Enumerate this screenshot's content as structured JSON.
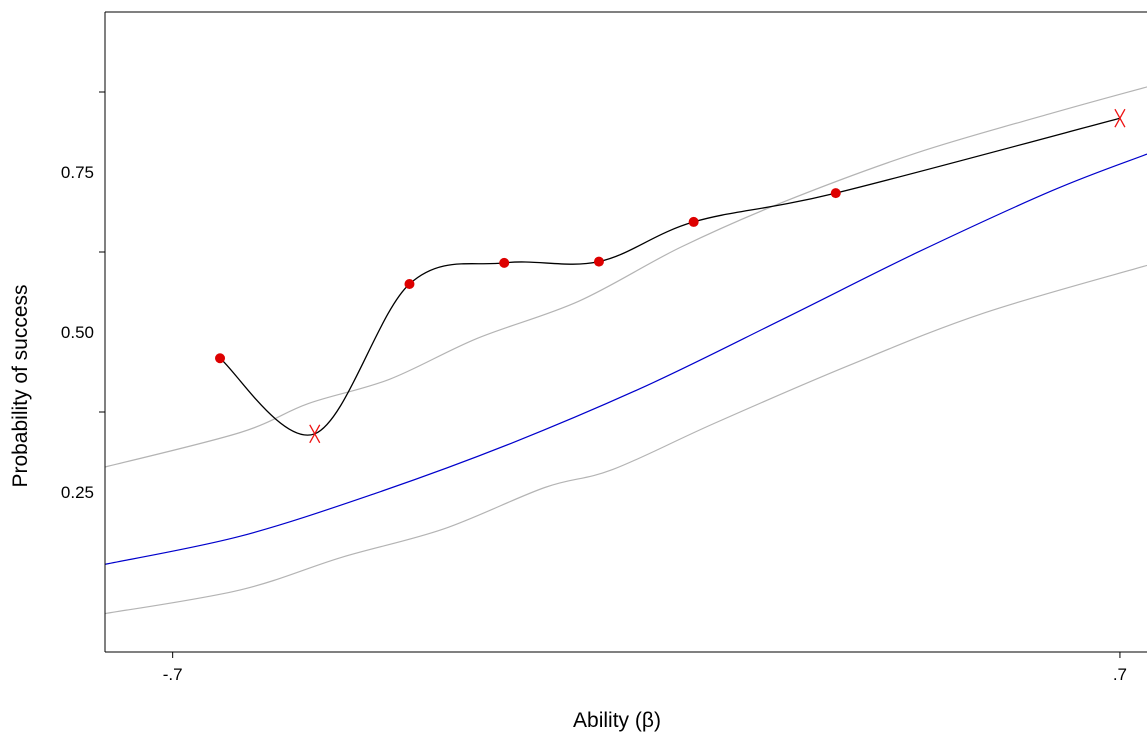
{
  "chart_data": {
    "type": "line",
    "xlabel": "Ability (β)",
    "ylabel": "Probability of success",
    "xlim": [
      -0.8,
      0.74
    ],
    "ylim": [
      0.0,
      1.0
    ],
    "x_ticks": [
      {
        "value": -0.7,
        "label": "-.7"
      },
      {
        "value": 0.7,
        "label": ".7"
      }
    ],
    "y_ticks": [
      {
        "value": 0.25,
        "label": "0.25"
      },
      {
        "value": 0.5,
        "label": "0.50"
      },
      {
        "value": 0.75,
        "label": "0.75"
      }
    ],
    "grid": false,
    "legend": "none",
    "colors": {
      "expected": "#0000cc",
      "confidence": "#b4b4b4",
      "empirical_line": "#000000",
      "point_fill": "#dd0000",
      "cross": "#ee1111"
    },
    "series": [
      {
        "role": "expected",
        "points": [
          {
            "x": -0.8,
            "y": 0.137
          },
          {
            "x": -0.6,
            "y": 0.181
          },
          {
            "x": -0.4,
            "y": 0.248
          },
          {
            "x": -0.2,
            "y": 0.326
          },
          {
            "x": 0.0,
            "y": 0.416
          },
          {
            "x": 0.2,
            "y": 0.519
          },
          {
            "x": 0.4,
            "y": 0.624
          },
          {
            "x": 0.6,
            "y": 0.721
          },
          {
            "x": 0.74,
            "y": 0.778
          }
        ]
      },
      {
        "role": "upper-confidence",
        "points": [
          {
            "x": -0.8,
            "y": 0.289
          },
          {
            "x": -0.6,
            "y": 0.343
          },
          {
            "x": -0.5,
            "y": 0.388
          },
          {
            "x": -0.38,
            "y": 0.426
          },
          {
            "x": -0.25,
            "y": 0.49
          },
          {
            "x": -0.1,
            "y": 0.548
          },
          {
            "x": 0.05,
            "y": 0.632
          },
          {
            "x": 0.2,
            "y": 0.702
          },
          {
            "x": 0.4,
            "y": 0.78
          },
          {
            "x": 0.6,
            "y": 0.842
          },
          {
            "x": 0.74,
            "y": 0.883
          }
        ]
      },
      {
        "role": "lower-confidence",
        "points": [
          {
            "x": -0.8,
            "y": 0.06
          },
          {
            "x": -0.6,
            "y": 0.097
          },
          {
            "x": -0.45,
            "y": 0.148
          },
          {
            "x": -0.3,
            "y": 0.192
          },
          {
            "x": -0.15,
            "y": 0.257
          },
          {
            "x": -0.05,
            "y": 0.285
          },
          {
            "x": 0.1,
            "y": 0.357
          },
          {
            "x": 0.3,
            "y": 0.448
          },
          {
            "x": 0.5,
            "y": 0.53
          },
          {
            "x": 0.74,
            "y": 0.604
          }
        ]
      },
      {
        "role": "empirical",
        "points": [
          {
            "x": -0.63,
            "y": 0.459,
            "marker": "dot"
          },
          {
            "x": -0.49,
            "y": 0.341,
            "marker": "cross"
          },
          {
            "x": -0.35,
            "y": 0.575,
            "marker": "dot"
          },
          {
            "x": -0.21,
            "y": 0.608,
            "marker": "dot"
          },
          {
            "x": -0.07,
            "y": 0.61,
            "marker": "dot"
          },
          {
            "x": 0.07,
            "y": 0.672,
            "marker": "dot"
          },
          {
            "x": 0.28,
            "y": 0.717,
            "marker": "dot"
          },
          {
            "x": 0.7,
            "y": 0.834,
            "marker": "cross"
          }
        ]
      }
    ]
  }
}
